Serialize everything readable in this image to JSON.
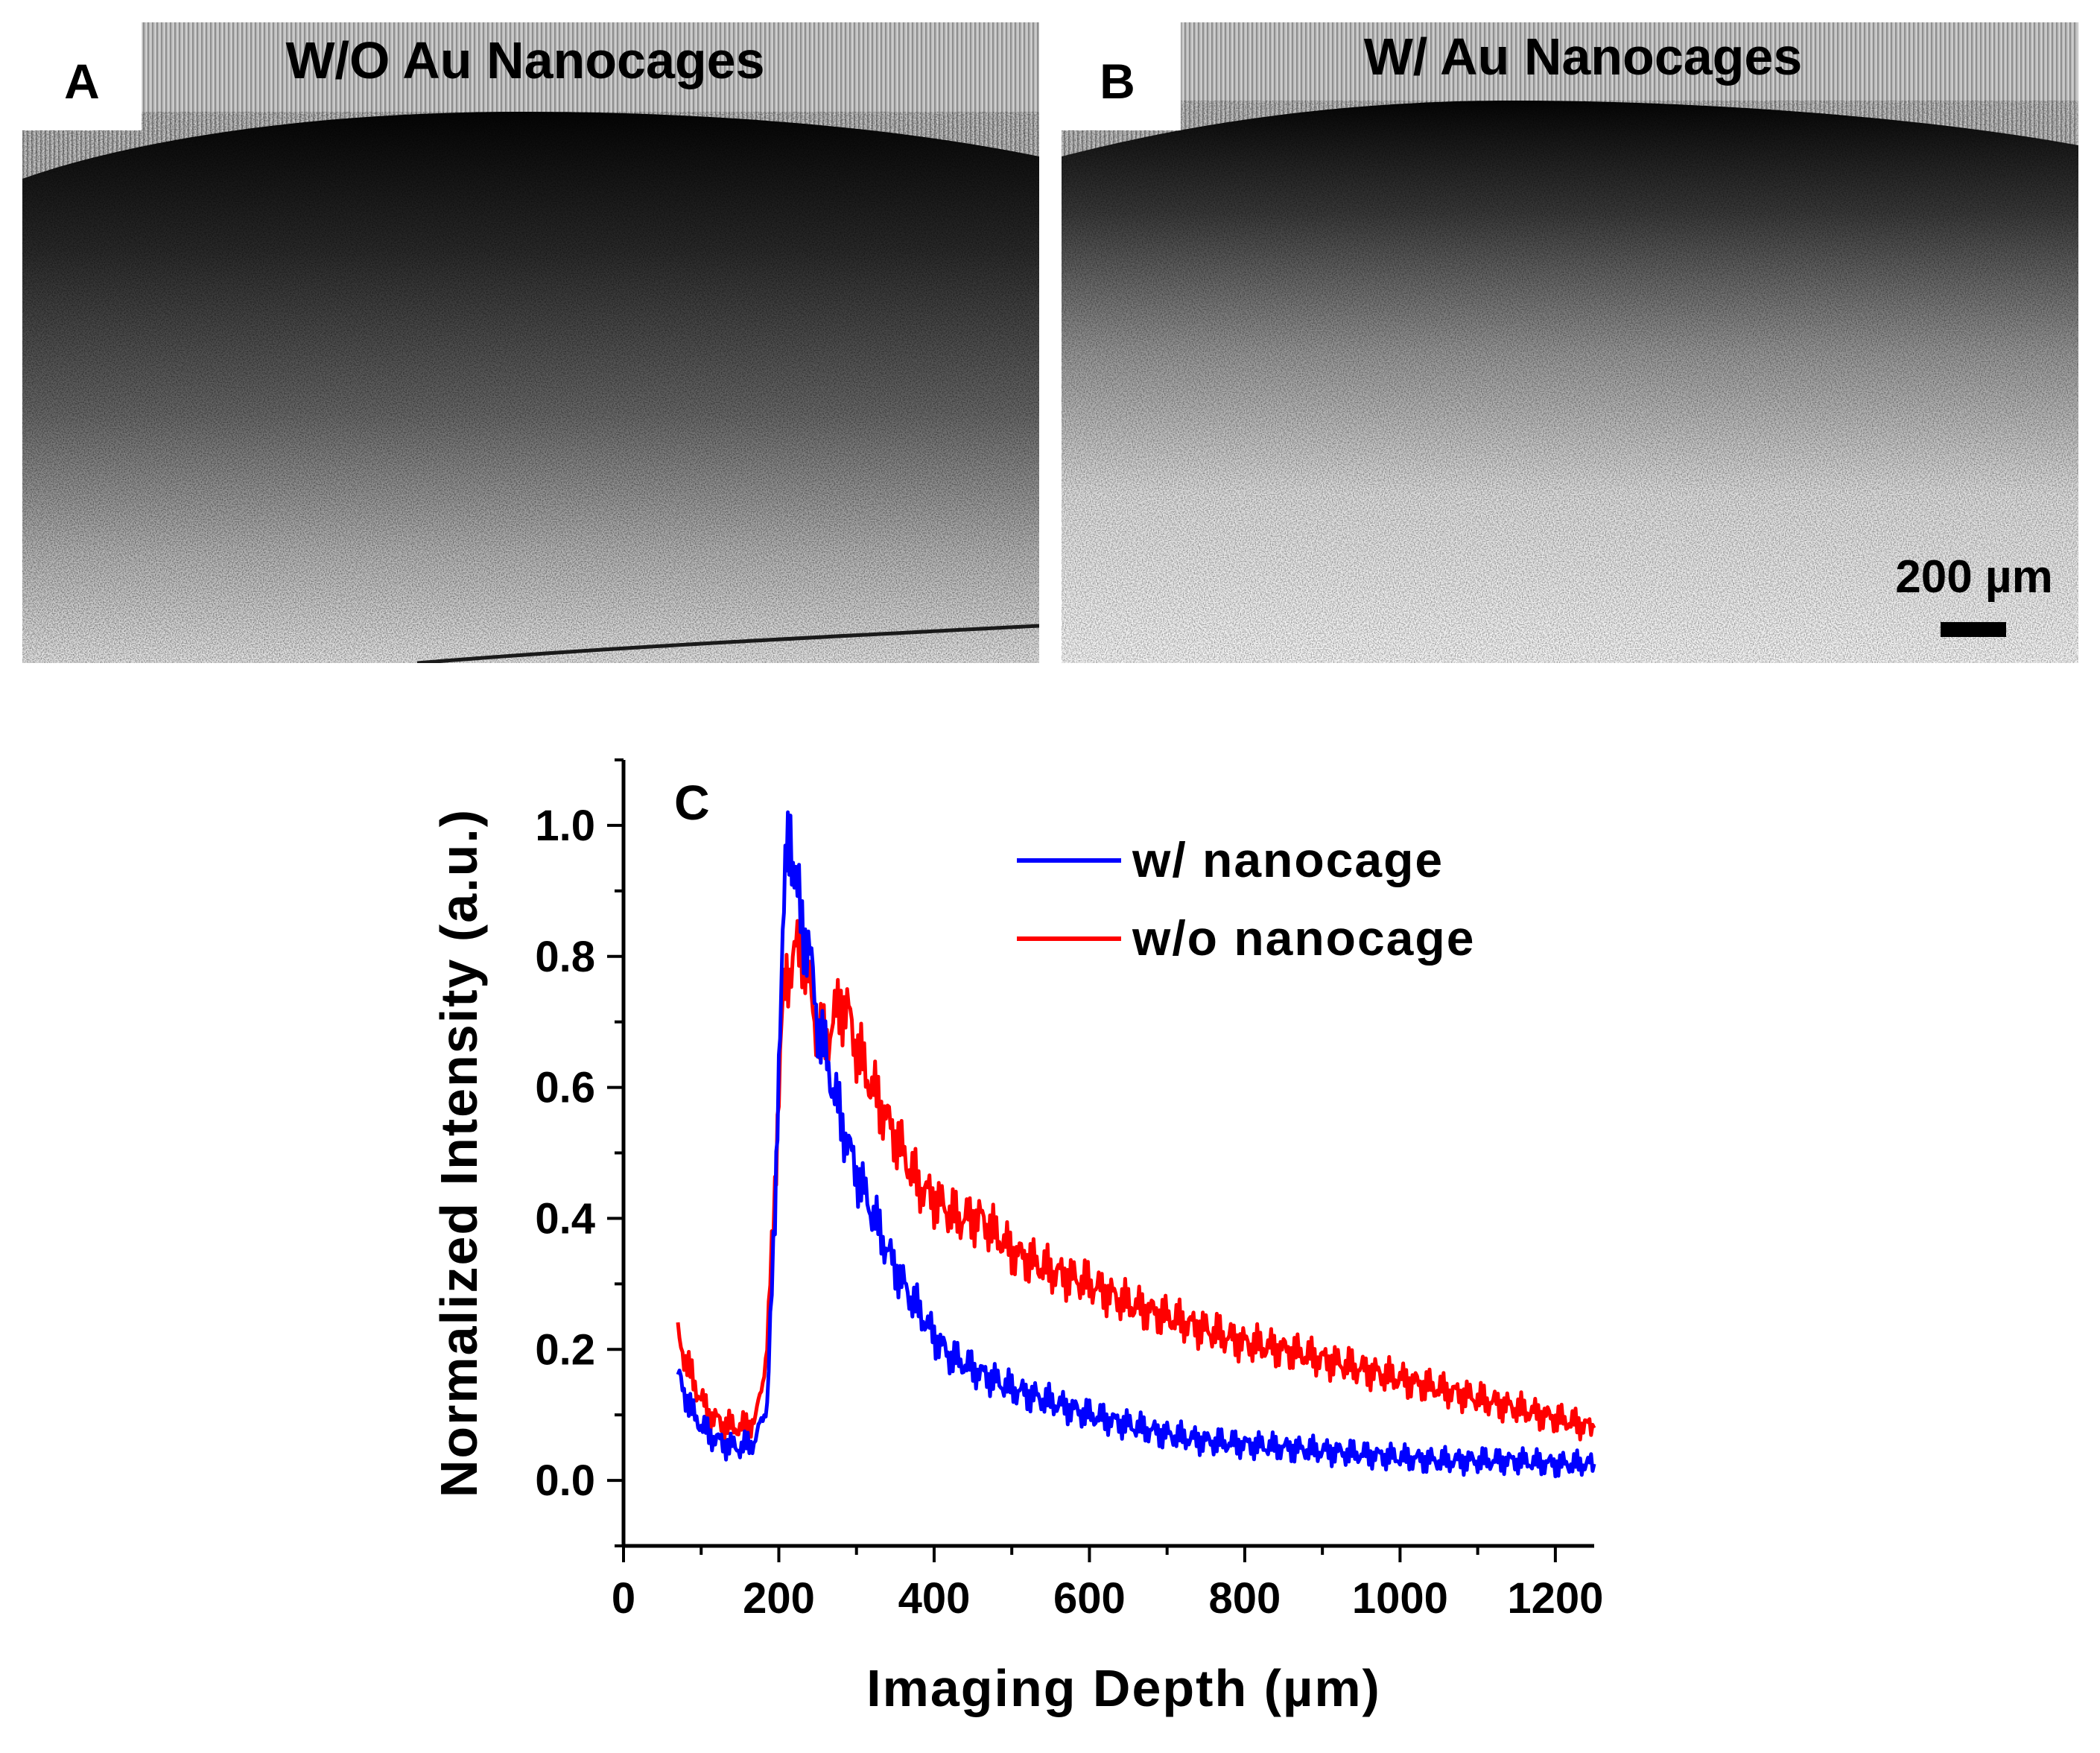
{
  "panels": {
    "a": {
      "letter": "A",
      "title": "W/O Au Nanocages"
    },
    "b": {
      "letter": "B",
      "title": "W/ Au Nanocages",
      "scale_bar": "200 µm"
    }
  },
  "chart_data": {
    "type": "line",
    "panel_letter": "C",
    "xlabel": "Imaging Depth (µm)",
    "ylabel": "Normalized Intensity (a.u.)",
    "xlim": [
      0,
      1250
    ],
    "ylim": [
      -0.1,
      1.1
    ],
    "xticks": [
      0,
      200,
      400,
      600,
      800,
      1000,
      1200
    ],
    "xtick_labels": [
      "0",
      "200",
      "400",
      "600",
      "800",
      "1000",
      "1200"
    ],
    "yticks": [
      0.0,
      0.2,
      0.4,
      0.6,
      0.8,
      1.0
    ],
    "ytick_labels": [
      "0.0",
      "0.2",
      "0.4",
      "0.6",
      "0.8",
      "1.0"
    ],
    "legend_position": "top-right",
    "series": [
      {
        "name": "w/ nanocage",
        "color": "#0000ff",
        "x": [
          70,
          90,
          110,
          130,
          150,
          170,
          185,
          195,
          200,
          205,
          210,
          215,
          220,
          230,
          240,
          250,
          260,
          280,
          300,
          320,
          340,
          360,
          380,
          400,
          420,
          450,
          500,
          550,
          600,
          650,
          700,
          750,
          800,
          850,
          900,
          950,
          1000,
          1050,
          1100,
          1150,
          1200,
          1250
        ],
        "y": [
          0.16,
          0.1,
          0.07,
          0.055,
          0.05,
          0.06,
          0.12,
          0.4,
          0.65,
          0.82,
          0.95,
          1.0,
          0.92,
          0.85,
          0.8,
          0.7,
          0.65,
          0.55,
          0.47,
          0.41,
          0.35,
          0.3,
          0.26,
          0.22,
          0.19,
          0.17,
          0.14,
          0.12,
          0.1,
          0.085,
          0.07,
          0.06,
          0.055,
          0.05,
          0.045,
          0.04,
          0.035,
          0.03,
          0.03,
          0.03,
          0.025,
          0.025
        ]
      },
      {
        "name": "w/o nanocage",
        "color": "#ff0000",
        "x": [
          70,
          90,
          110,
          130,
          150,
          170,
          185,
          195,
          200,
          205,
          210,
          220,
          230,
          240,
          250,
          260,
          270,
          280,
          290,
          300,
          320,
          340,
          360,
          380,
          400,
          430,
          460,
          500,
          550,
          600,
          650,
          700,
          750,
          800,
          850,
          900,
          950,
          1000,
          1050,
          1100,
          1150,
          1200,
          1250
        ],
        "y": [
          0.22,
          0.15,
          0.1,
          0.085,
          0.08,
          0.09,
          0.2,
          0.45,
          0.6,
          0.72,
          0.77,
          0.8,
          0.82,
          0.75,
          0.68,
          0.67,
          0.7,
          0.73,
          0.71,
          0.66,
          0.6,
          0.55,
          0.5,
          0.45,
          0.43,
          0.4,
          0.4,
          0.35,
          0.32,
          0.3,
          0.27,
          0.25,
          0.23,
          0.21,
          0.2,
          0.185,
          0.17,
          0.155,
          0.14,
          0.125,
          0.11,
          0.095,
          0.08
        ]
      }
    ]
  }
}
